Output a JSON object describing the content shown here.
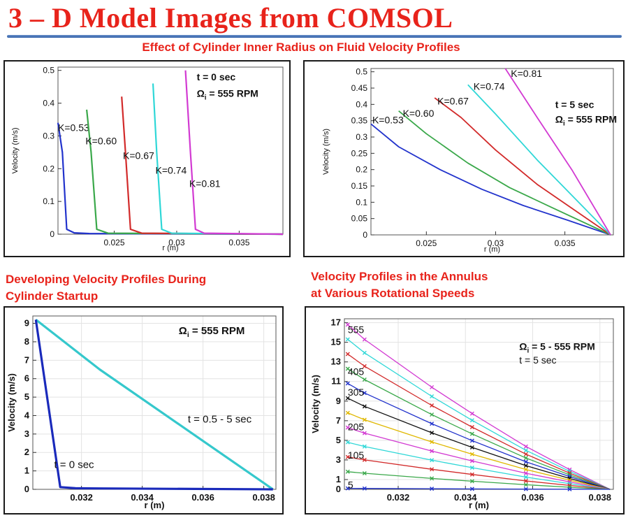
{
  "page": {
    "title": "3 – D Model Images from COMSOL",
    "subtitle": "Effect of Cylinder Inner Radius on Fluid Velocity Profiles",
    "caption_left": [
      "Developing Velocity Profiles During",
      "Cylinder Startup"
    ],
    "caption_right": [
      "Velocity Profiles in the Annulus",
      "at Various Rotational Speeds"
    ]
  },
  "colors": {
    "title_red": "#e8231b",
    "rule_blue": "#2f5fa8",
    "blue": "#2233cc",
    "green": "#3aa84a",
    "red": "#d22a2a",
    "cyan": "#2fd7d7",
    "magenta": "#d23ad2",
    "yellow": "#e0b800",
    "black": "#111111",
    "dark_blue": "#1a2a9a",
    "grid": "#e3e3e3"
  },
  "chart_data": [
    {
      "id": "tl",
      "type": "line",
      "xlabel": "r (m)",
      "ylabel": "Velocity (m/s)",
      "xlim": [
        0.0205,
        0.0385
      ],
      "ylim": [
        0,
        0.51
      ],
      "xticks": [
        0.025,
        0.03,
        0.035
      ],
      "xtick_labels": [
        "0.025",
        "0.03",
        "0.035"
      ],
      "yticks": [
        0,
        0.1,
        0.2,
        0.3,
        0.4,
        0.5
      ],
      "ytick_labels": [
        "0",
        "0.1",
        "0.2",
        "0.3",
        "0.4",
        "0.5"
      ],
      "grid": false,
      "annotations": [
        {
          "text": "t = 0 sec",
          "x": 0.0316,
          "y": 0.48
        },
        {
          "text": "Ω",
          "sub": "i",
          "rest": " = 555 RPM",
          "x": 0.0316,
          "y": 0.43
        }
      ],
      "series": [
        {
          "name": "K=0.53",
          "color": "#2233cc",
          "label_at": [
            0.0205,
            0.325
          ],
          "x": [
            0.0205,
            0.02085,
            0.0212,
            0.0218,
            0.023,
            0.0385
          ],
          "y": [
            0.34,
            0.25,
            0.015,
            0.004,
            0.002,
            0.0
          ]
        },
        {
          "name": "K=0.60",
          "color": "#3aa84a",
          "label_at": [
            0.0227,
            0.285
          ],
          "x": [
            0.0228,
            0.02315,
            0.0236,
            0.0245,
            0.0385
          ],
          "y": [
            0.38,
            0.25,
            0.015,
            0.003,
            0.0
          ]
        },
        {
          "name": "K=0.67",
          "color": "#d22a2a",
          "label_at": [
            0.0257,
            0.24
          ],
          "x": [
            0.0256,
            0.0259,
            0.0263,
            0.0272,
            0.0385
          ],
          "y": [
            0.42,
            0.25,
            0.015,
            0.003,
            0.0
          ]
        },
        {
          "name": "K=0.74",
          "color": "#2fd7d7",
          "label_at": [
            0.0283,
            0.195
          ],
          "x": [
            0.0281,
            0.0284,
            0.0288,
            0.0296,
            0.0385
          ],
          "y": [
            0.46,
            0.25,
            0.015,
            0.003,
            0.0
          ]
        },
        {
          "name": "K=0.81",
          "color": "#d23ad2",
          "label_at": [
            0.031,
            0.155
          ],
          "x": [
            0.0307,
            0.0311,
            0.0315,
            0.0322,
            0.0385
          ],
          "y": [
            0.5,
            0.25,
            0.015,
            0.003,
            0.0
          ]
        }
      ]
    },
    {
      "id": "tr",
      "type": "line",
      "xlabel": "r (m)",
      "ylabel": "Velocity (m/s)",
      "xlim": [
        0.021,
        0.0385
      ],
      "ylim": [
        0,
        0.51
      ],
      "xticks": [
        0.025,
        0.03,
        0.035
      ],
      "xtick_labels": [
        "0.025",
        "0.03",
        "0.035"
      ],
      "yticks": [
        0,
        0.05,
        0.1,
        0.15,
        0.2,
        0.25,
        0.3,
        0.35,
        0.4,
        0.45,
        0.5
      ],
      "ytick_labels": [
        "0",
        "0.05",
        "0.1",
        "0.15",
        "0.2",
        "0.25",
        "0.3",
        "0.35",
        "0.4",
        "0.45",
        "0.5"
      ],
      "grid": false,
      "annotations": [
        {
          "text": "t = 5 sec",
          "x": 0.0343,
          "y": 0.4
        },
        {
          "text": "Ω",
          "sub": "i",
          "rest": " = 555 RPM",
          "x": 0.0343,
          "y": 0.355
        }
      ],
      "series": [
        {
          "name": "K=0.53",
          "color": "#2233cc",
          "label_at": [
            0.0211,
            0.352
          ],
          "x": [
            0.021,
            0.023,
            0.026,
            0.029,
            0.032,
            0.0352,
            0.0383
          ],
          "y": [
            0.34,
            0.27,
            0.2,
            0.14,
            0.09,
            0.045,
            0.0
          ]
        },
        {
          "name": "K=0.60",
          "color": "#3aa84a",
          "label_at": [
            0.0233,
            0.373
          ],
          "x": [
            0.023,
            0.025,
            0.028,
            0.031,
            0.034,
            0.0383
          ],
          "y": [
            0.38,
            0.31,
            0.22,
            0.145,
            0.085,
            0.0
          ]
        },
        {
          "name": "K=0.67",
          "color": "#d22a2a",
          "label_at": [
            0.0258,
            0.41
          ],
          "x": [
            0.0256,
            0.0275,
            0.03,
            0.033,
            0.0383
          ],
          "y": [
            0.42,
            0.36,
            0.26,
            0.155,
            0.0
          ]
        },
        {
          "name": "K=0.74",
          "color": "#2fd7d7",
          "label_at": [
            0.0284,
            0.455
          ],
          "x": [
            0.028,
            0.03,
            0.033,
            0.0383
          ],
          "y": [
            0.46,
            0.37,
            0.23,
            0.0
          ]
        },
        {
          "name": "K=0.81",
          "color": "#d23ad2",
          "label_at": [
            0.0311,
            0.495
          ],
          "x": [
            0.0307,
            0.033,
            0.0355,
            0.0383
          ],
          "y": [
            0.51,
            0.36,
            0.2,
            0.0
          ]
        }
      ]
    },
    {
      "id": "bl",
      "type": "line",
      "xlabel": "r (m)",
      "ylabel": "Velocity (m/s)",
      "xlim": [
        0.0304,
        0.0384
      ],
      "ylim": [
        0,
        9.4
      ],
      "xticks": [
        0.032,
        0.034,
        0.036,
        0.038
      ],
      "xtick_labels": [
        "0.032",
        "0.034",
        "0.036",
        "0.038"
      ],
      "yticks": [
        0,
        1,
        2,
        3,
        4,
        5,
        6,
        7,
        8,
        9
      ],
      "ytick_labels": [
        "0",
        "1",
        "2",
        "3",
        "4",
        "5",
        "6",
        "7",
        "8",
        "9"
      ],
      "grid": true,
      "annotations": [
        {
          "text": "Ω",
          "sub": "i",
          "rest": " = 555 RPM",
          "x": 0.0352,
          "y": 8.6
        },
        {
          "text": "t = 0.5 - 5 sec",
          "x": 0.0355,
          "y": 3.8
        },
        {
          "text": "t = 0 sec",
          "x": 0.0311,
          "y": 1.35
        }
      ],
      "series": [
        {
          "name": "t = 0.5 - 5 sec",
          "color": "#35c8cc",
          "x": [
            0.0305,
            0.0326,
            0.0383
          ],
          "y": [
            9.2,
            6.5,
            0.0
          ]
        },
        {
          "name": "t = 0 sec",
          "color": "#1a2abb",
          "x": [
            0.0305,
            0.0313,
            0.0318,
            0.0326,
            0.0383
          ],
          "y": [
            9.2,
            0.12,
            0.06,
            0.05,
            0.0
          ]
        }
      ]
    },
    {
      "id": "br",
      "type": "line",
      "xlabel": "r (m)",
      "ylabel": "Velocity (m/s)",
      "xlim": [
        0.0304,
        0.0384
      ],
      "ylim": [
        0,
        17.4
      ],
      "xticks": [
        0.032,
        0.034,
        0.036,
        0.038
      ],
      "xtick_labels": [
        "0.032",
        "0.034",
        "0.036",
        "0.038"
      ],
      "yticks": [
        0,
        1,
        3,
        5,
        7,
        9,
        11,
        13,
        15,
        17
      ],
      "ytick_labels": [
        "0",
        "1",
        "3",
        "5",
        "7",
        "9",
        "11",
        "13",
        "15",
        "17"
      ],
      "grid": true,
      "annotations": [
        {
          "text": "Ω",
          "sub": "i",
          "rest": " = 5 - 555 RPM",
          "x": 0.0356,
          "y": 14.6
        },
        {
          "text": "t = 5 sec",
          "x": 0.0356,
          "y": 13.2
        }
      ],
      "series": [
        {
          "name": "555",
          "color": "#d23ad2",
          "label_at": [
            0.0305,
            16.3
          ],
          "y0": 16.8
        },
        {
          "name": "",
          "color": "#2fd7d7",
          "y0": 15.3
        },
        {
          "name": "",
          "color": "#d22a2a",
          "y0": 13.8
        },
        {
          "name": "405",
          "color": "#3aa84a",
          "label_at": [
            0.0305,
            12.0
          ],
          "y0": 12.3
        },
        {
          "name": "",
          "color": "#2233cc",
          "y0": 10.8
        },
        {
          "name": "305",
          "color": "#111111",
          "label_at": [
            0.0305,
            9.9
          ],
          "y0": 9.3
        },
        {
          "name": "",
          "color": "#e0b800",
          "y0": 7.8
        },
        {
          "name": "205",
          "color": "#d23ad2",
          "label_at": [
            0.0305,
            6.4
          ],
          "y0": 6.3
        },
        {
          "name": "",
          "color": "#2fd7d7",
          "y0": 4.8
        },
        {
          "name": "105",
          "color": "#d22a2a",
          "label_at": [
            0.0305,
            3.5
          ],
          "y0": 3.3
        },
        {
          "name": "",
          "color": "#3aa84a",
          "y0": 1.8
        },
        {
          "name": "5",
          "color": "#2233cc",
          "label_at": [
            0.0305,
            0.45
          ],
          "y0": 0.1
        }
      ],
      "shared_x": [
        0.0305,
        0.031,
        0.033,
        0.0342,
        0.0358,
        0.0371,
        0.0383
      ],
      "shape": [
        1.0,
        0.91,
        0.62,
        0.46,
        0.26,
        0.12,
        0.0
      ]
    }
  ]
}
